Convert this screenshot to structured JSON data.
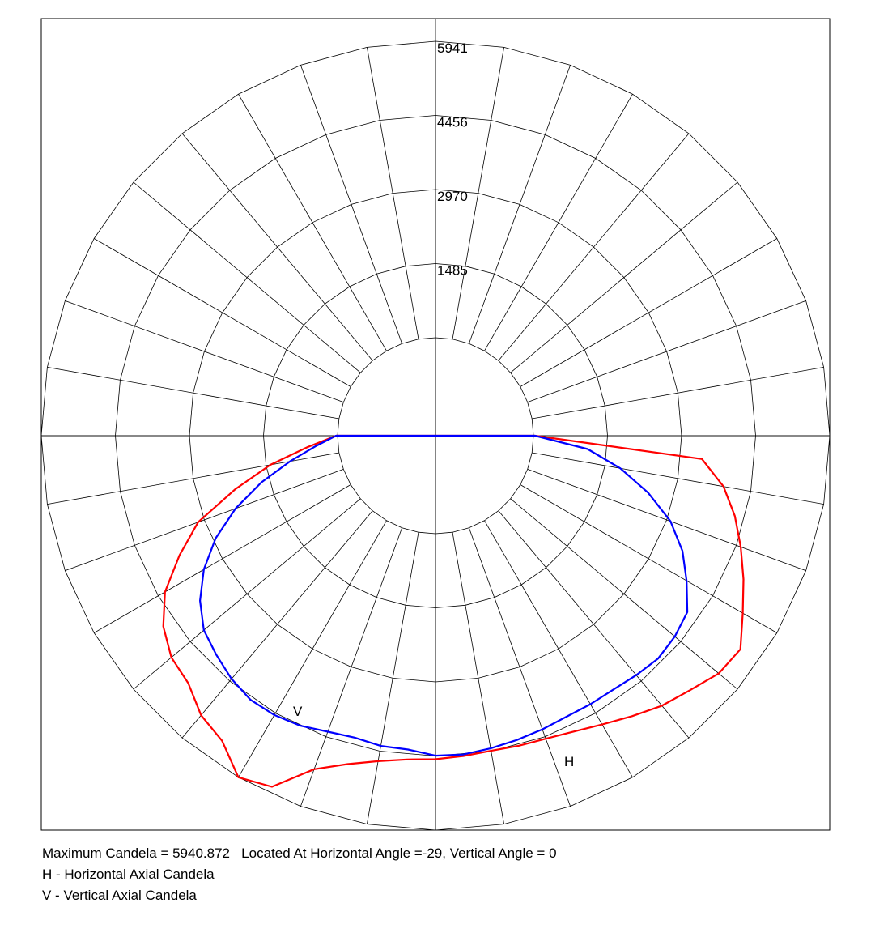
{
  "chart_data": {
    "type": "line",
    "subtype": "polar-candela-distribution",
    "radial_ticks": [
      1485,
      2970,
      4456,
      5941
    ],
    "radial_max": 5941,
    "angle_step_deg": 10,
    "grid": true,
    "series": [
      {
        "name": "H",
        "color": "#ff0000",
        "angles_deg": [
          -90,
          -85,
          -80,
          -75,
          -70,
          -65,
          -60,
          -55,
          -50,
          -45,
          -40,
          -35,
          -30,
          -25,
          -20,
          -15,
          -10,
          -5,
          0,
          5,
          10,
          15,
          20,
          25,
          30,
          35,
          40,
          45,
          50,
          55,
          60,
          65,
          70,
          75,
          80,
          85,
          90
        ],
        "candela": [
          30,
          600,
          1400,
          2200,
          3100,
          3700,
          4300,
          4700,
          4950,
          5050,
          5350,
          5500,
          5941,
          5800,
          5150,
          4850,
          4660,
          4550,
          4520,
          4480,
          4450,
          4470,
          4500,
          4580,
          4720,
          4900,
          5100,
          5250,
          5450,
          5500,
          5150,
          4850,
          4550,
          4250,
          3900,
          3400,
          30
        ]
      },
      {
        "name": "V",
        "color": "#0000ff",
        "angles_deg": [
          -90,
          -85,
          -80,
          -75,
          -70,
          -65,
          -60,
          -55,
          -50,
          -45,
          -40,
          -35,
          -30,
          -25,
          -20,
          -15,
          -10,
          -5,
          0,
          5,
          10,
          15,
          20,
          25,
          30,
          35,
          40,
          45,
          50,
          55,
          60,
          65,
          70,
          75,
          80,
          85,
          90
        ],
        "candela": [
          30,
          450,
          1000,
          1650,
          2300,
          2900,
          3400,
          3800,
          4100,
          4250,
          4400,
          4500,
          4500,
          4450,
          4350,
          4300,
          4350,
          4350,
          4450,
          4450,
          4400,
          4350,
          4300,
          4250,
          4250,
          4250,
          4300,
          4350,
          4300,
          4200,
          3850,
          3500,
          3050,
          2450,
          1800,
          1100,
          30
        ]
      }
    ],
    "labels": {
      "h": "H",
      "v": "V"
    }
  },
  "legend": {
    "max_line": "Maximum Candela = 5940.872   Located At Horizontal Angle =-29, Vertical Angle = 0",
    "h_line": "H - Horizontal Axial Candela",
    "v_line": "V - Vertical Axial Candela"
  }
}
